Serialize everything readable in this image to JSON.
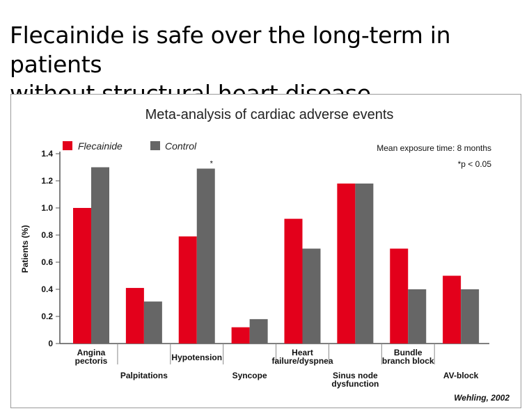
{
  "slide": {
    "title_line1": "Flecainide is safe over the long-term in patients",
    "title_line2": "without structural heart disease"
  },
  "chart_data": {
    "type": "bar",
    "title": "Meta-analysis of cardiac adverse events",
    "ylabel": "Patients (%)",
    "xlabel": "",
    "ylim": [
      0,
      1.4
    ],
    "yticks": [
      "0",
      "0.2",
      "0.4",
      "0.6",
      "0.8",
      "1.0",
      "1.2",
      "1.4"
    ],
    "grid": false,
    "legend_position": "top-left",
    "categories": [
      [
        "Angina",
        "pectoris"
      ],
      [
        "Palpitations"
      ],
      [
        "Hypotension"
      ],
      [
        "Syncope"
      ],
      [
        "Heart",
        "failure/dyspnea"
      ],
      [
        "Sinus node",
        "dysfunction"
      ],
      [
        "Bundle",
        "branch block"
      ],
      [
        "AV-block"
      ]
    ],
    "series": [
      {
        "name": "Flecainide",
        "color": "#e3001b",
        "values": [
          1.0,
          0.41,
          0.79,
          0.12,
          0.92,
          1.18,
          0.7,
          0.5
        ]
      },
      {
        "name": "Control",
        "color": "#666666",
        "values": [
          1.3,
          0.31,
          1.29,
          0.18,
          0.7,
          1.18,
          0.4,
          0.4
        ]
      }
    ],
    "notes": [
      "Mean exposure time: 8 months",
      "*p < 0.05"
    ],
    "annotations": [
      {
        "category_index": 2,
        "series_index": 1,
        "text": "*"
      }
    ],
    "source": "Wehling, 2002"
  }
}
